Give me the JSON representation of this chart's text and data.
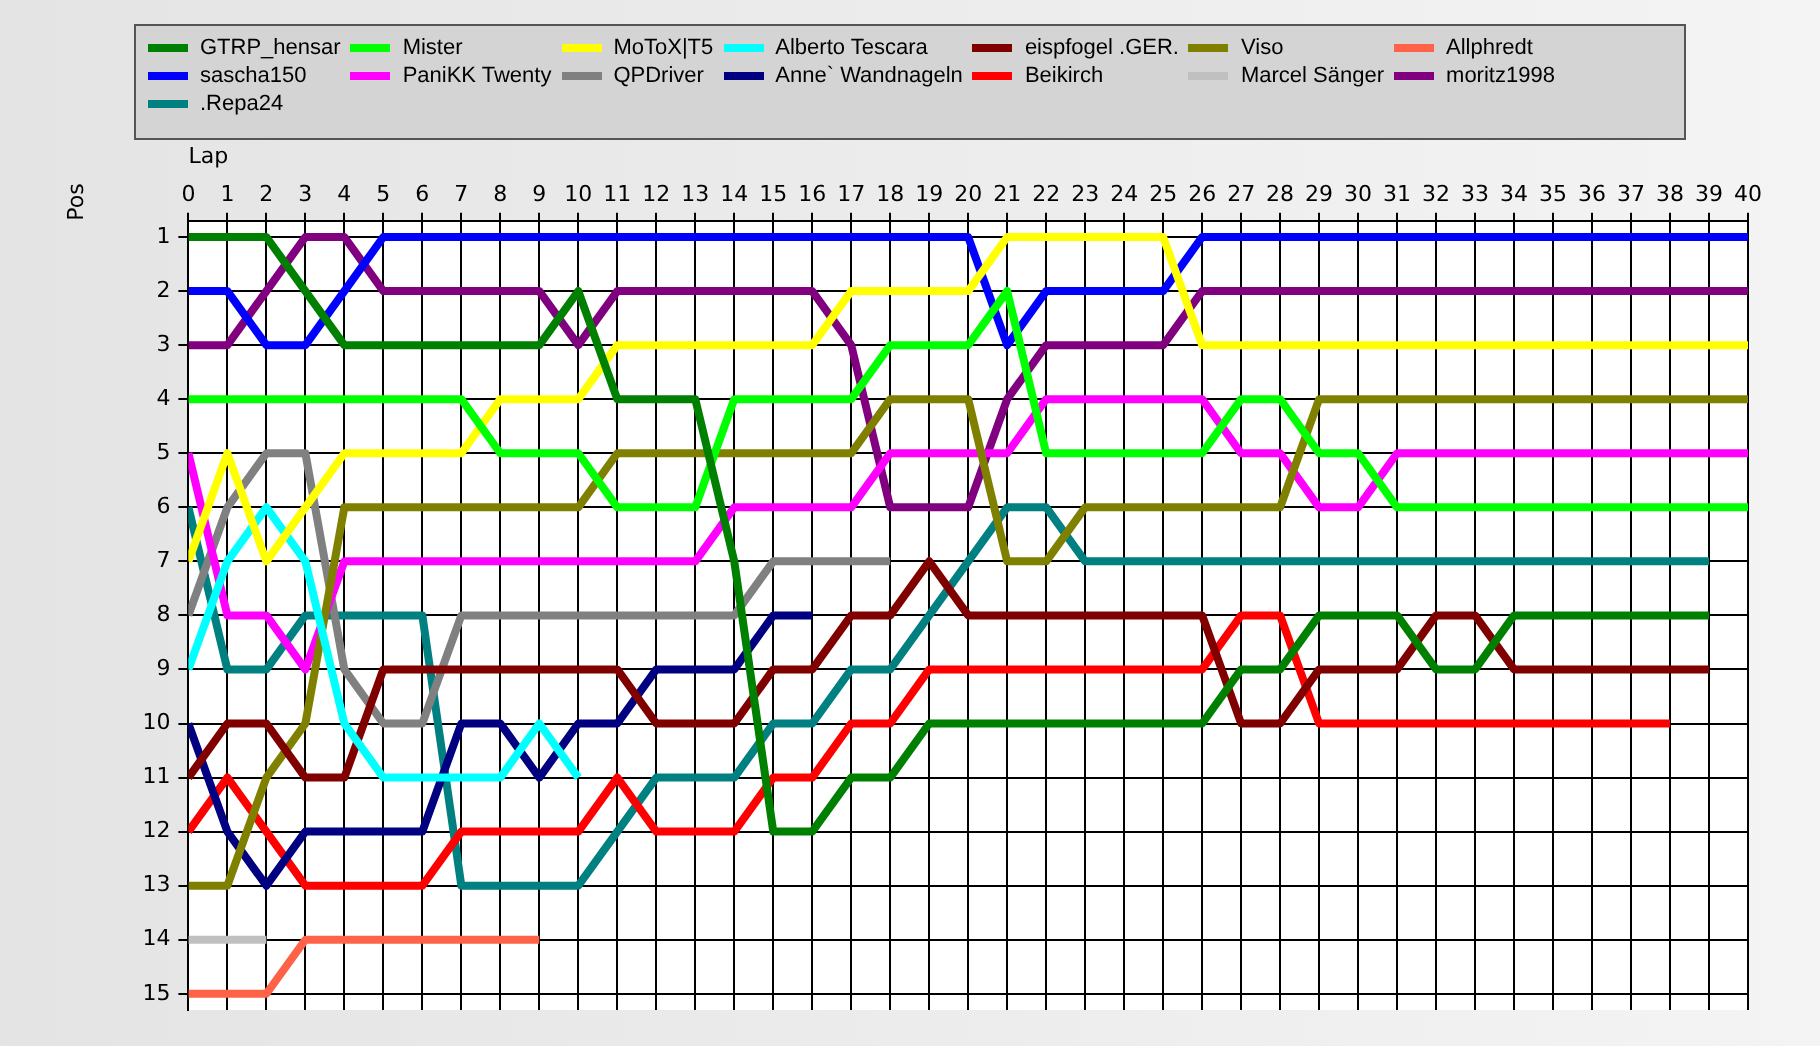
{
  "chart_data": {
    "type": "line",
    "xlabel": "Lap",
    "ylabel": "Pos",
    "x": [
      0,
      1,
      2,
      3,
      4,
      5,
      6,
      7,
      8,
      9,
      10,
      11,
      12,
      13,
      14,
      15,
      16,
      17,
      18,
      19,
      20,
      21,
      22,
      23,
      24,
      25,
      26,
      27,
      28,
      29,
      30,
      31,
      32,
      33,
      34,
      35,
      36,
      37,
      38,
      39,
      40
    ],
    "xlim": [
      0,
      40
    ],
    "xticks": [
      0,
      1,
      2,
      3,
      4,
      5,
      6,
      7,
      8,
      9,
      10,
      11,
      12,
      13,
      14,
      15,
      16,
      17,
      18,
      19,
      20,
      21,
      22,
      23,
      24,
      25,
      26,
      27,
      28,
      29,
      30,
      31,
      32,
      33,
      34,
      35,
      36,
      37,
      38,
      39,
      40
    ],
    "ylim": [
      15.3,
      0.7
    ],
    "yticks": [
      1,
      2,
      3,
      4,
      5,
      6,
      7,
      8,
      9,
      10,
      11,
      12,
      13,
      14,
      15
    ],
    "grid": true,
    "legend": "top",
    "marker": "none",
    "line_style": "solid",
    "series": [
      {
        "name": "GTRP_hensar",
        "color": "#008000",
        "values": [
          1,
          1,
          1,
          2,
          3,
          3,
          3,
          3,
          3,
          3,
          2,
          4,
          4,
          4,
          7,
          12,
          12,
          11,
          11,
          10,
          10,
          10,
          10,
          10,
          10,
          10,
          10,
          9,
          9,
          8,
          8,
          8,
          9,
          9,
          8,
          8,
          8,
          8,
          8,
          8,
          null
        ]
      },
      {
        "name": "Mister",
        "color": "#00ff00",
        "values": [
          4,
          4,
          4,
          4,
          4,
          4,
          4,
          4,
          5,
          5,
          5,
          6,
          6,
          6,
          4,
          4,
          4,
          4,
          3,
          3,
          3,
          2,
          5,
          5,
          5,
          5,
          5,
          4,
          4,
          5,
          5,
          6,
          6,
          6,
          6,
          6,
          6,
          6,
          6,
          6,
          6
        ]
      },
      {
        "name": "MoToX|T5",
        "color": "#ffff00",
        "values": [
          7,
          5,
          7,
          6,
          5,
          5,
          5,
          5,
          4,
          4,
          4,
          3,
          3,
          3,
          3,
          3,
          3,
          2,
          2,
          2,
          2,
          1,
          1,
          1,
          1,
          1,
          3,
          3,
          3,
          3,
          3,
          3,
          3,
          3,
          3,
          3,
          3,
          3,
          3,
          3,
          3
        ]
      },
      {
        "name": "Alberto Tescara",
        "color": "#00ffff",
        "values": [
          9,
          7,
          6,
          7,
          10,
          11,
          11,
          11,
          11,
          10,
          11,
          null,
          null,
          null,
          null,
          null,
          null,
          null,
          null,
          null,
          null,
          null,
          null,
          null,
          null,
          null,
          null,
          null,
          null,
          null,
          null,
          null,
          null,
          null,
          null,
          null,
          null,
          null,
          null,
          null,
          null
        ]
      },
      {
        "name": "eispfogel .GER.",
        "color": "#800000",
        "values": [
          11,
          10,
          10,
          11,
          11,
          9,
          9,
          9,
          9,
          9,
          9,
          9,
          10,
          10,
          10,
          9,
          9,
          8,
          8,
          7,
          8,
          8,
          8,
          8,
          8,
          8,
          8,
          10,
          10,
          9,
          9,
          9,
          8,
          8,
          9,
          9,
          9,
          9,
          9,
          9,
          null
        ]
      },
      {
        "name": "Viso",
        "color": "#808000",
        "values": [
          13,
          13,
          11,
          10,
          6,
          6,
          6,
          6,
          6,
          6,
          6,
          5,
          5,
          5,
          5,
          5,
          5,
          5,
          4,
          4,
          4,
          7,
          7,
          6,
          6,
          6,
          6,
          6,
          6,
          4,
          4,
          4,
          4,
          4,
          4,
          4,
          4,
          4,
          4,
          4,
          4
        ]
      },
      {
        "name": "Allphredt",
        "color": "#ff6347",
        "values": [
          15,
          15,
          15,
          14,
          14,
          14,
          14,
          14,
          14,
          14,
          null,
          null,
          null,
          null,
          null,
          null,
          null,
          null,
          null,
          null,
          null,
          null,
          null,
          null,
          null,
          null,
          null,
          null,
          null,
          null,
          null,
          null,
          null,
          null,
          null,
          null,
          null,
          null,
          null,
          null,
          null
        ]
      },
      {
        "name": "sascha150",
        "color": "#0000ff",
        "values": [
          2,
          2,
          3,
          3,
          2,
          1,
          1,
          1,
          1,
          1,
          1,
          1,
          1,
          1,
          1,
          1,
          1,
          1,
          1,
          1,
          1,
          3,
          2,
          2,
          2,
          2,
          1,
          1,
          1,
          1,
          1,
          1,
          1,
          1,
          1,
          1,
          1,
          1,
          1,
          1,
          1
        ]
      },
      {
        "name": "PaniKK Twenty",
        "color": "#ff00ff",
        "values": [
          5,
          8,
          8,
          9,
          7,
          7,
          7,
          7,
          7,
          7,
          7,
          7,
          7,
          7,
          6,
          6,
          6,
          6,
          5,
          5,
          5,
          5,
          4,
          4,
          4,
          4,
          4,
          5,
          5,
          6,
          6,
          5,
          5,
          5,
          5,
          5,
          5,
          5,
          5,
          5,
          5
        ]
      },
      {
        "name": "QPDriver",
        "color": "#808080",
        "values": [
          8,
          6,
          5,
          5,
          9,
          10,
          10,
          8,
          8,
          8,
          8,
          8,
          8,
          8,
          8,
          7,
          7,
          7,
          7,
          null,
          null,
          null,
          null,
          null,
          null,
          null,
          null,
          null,
          null,
          null,
          null,
          null,
          null,
          null,
          null,
          null,
          null,
          null,
          null,
          null,
          null
        ]
      },
      {
        "name": "Anne` Wandnageln",
        "color": "#000080",
        "values": [
          10,
          12,
          13,
          12,
          12,
          12,
          12,
          10,
          10,
          11,
          10,
          10,
          9,
          9,
          9,
          8,
          8,
          null,
          null,
          null,
          null,
          null,
          null,
          null,
          null,
          null,
          null,
          null,
          null,
          null,
          null,
          null,
          null,
          null,
          null,
          null,
          null,
          null,
          null,
          null,
          null
        ]
      },
      {
        "name": "Beikirch",
        "color": "#ff0000",
        "values": [
          12,
          11,
          12,
          13,
          13,
          13,
          13,
          12,
          12,
          12,
          12,
          11,
          12,
          12,
          12,
          11,
          11,
          10,
          10,
          9,
          9,
          9,
          9,
          9,
          9,
          9,
          9,
          8,
          8,
          10,
          10,
          10,
          10,
          10,
          10,
          10,
          10,
          10,
          10,
          null,
          null
        ]
      },
      {
        "name": "Marcel Sänger",
        "color": "#c0c0c0",
        "values": [
          14,
          14,
          14,
          null,
          null,
          null,
          null,
          null,
          null,
          null,
          null,
          null,
          null,
          null,
          null,
          null,
          null,
          null,
          null,
          null,
          null,
          null,
          null,
          null,
          null,
          null,
          null,
          null,
          null,
          null,
          null,
          null,
          null,
          null,
          null,
          null,
          null,
          null,
          null,
          null,
          null
        ]
      },
      {
        "name": "moritz1998",
        "color": "#800080",
        "values": [
          3,
          3,
          2,
          1,
          1,
          2,
          2,
          2,
          2,
          2,
          3,
          2,
          2,
          2,
          2,
          2,
          2,
          3,
          6,
          6,
          6,
          4,
          3,
          3,
          3,
          3,
          2,
          2,
          2,
          2,
          2,
          2,
          2,
          2,
          2,
          2,
          2,
          2,
          2,
          2,
          2
        ]
      },
      {
        "name": ".Repa24",
        "color": "#008080",
        "values": [
          6,
          9,
          9,
          8,
          8,
          8,
          8,
          13,
          13,
          13,
          13,
          12,
          11,
          11,
          11,
          10,
          10,
          9,
          9,
          8,
          7,
          6,
          6,
          7,
          7,
          7,
          7,
          7,
          7,
          7,
          7,
          7,
          7,
          7,
          7,
          7,
          7,
          7,
          7,
          7,
          null
        ]
      }
    ]
  }
}
